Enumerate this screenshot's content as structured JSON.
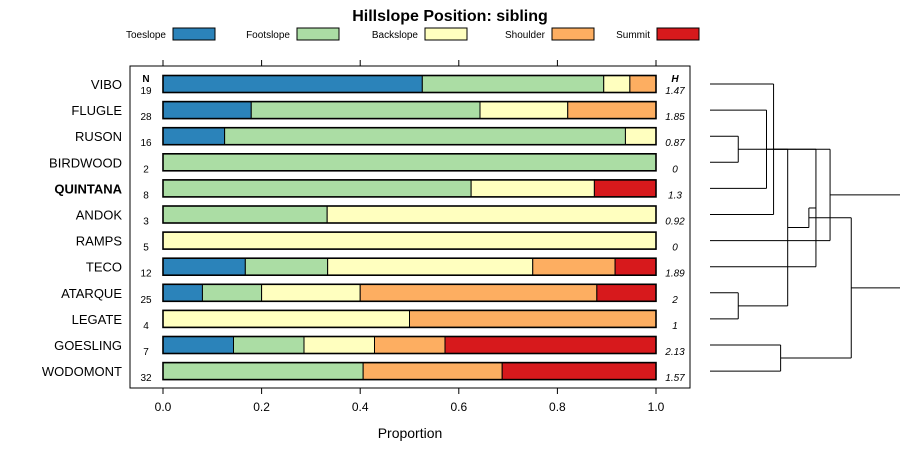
{
  "chart_data": {
    "type": "bar",
    "orientation": "horizontal",
    "stacked": true,
    "title": "Hillslope Position: sibling",
    "xlabel": "Proportion",
    "ylabel": "",
    "xlim": [
      0,
      1
    ],
    "xticks": [
      "0.0",
      "0.2",
      "0.4",
      "0.6",
      "0.8",
      "1.0"
    ],
    "legend_position": "top",
    "n_header": "N",
    "h_header": "H",
    "highlight_category": "QUINTANA",
    "series_names": [
      "Toeslope",
      "Footslope",
      "Backslope",
      "Shoulder",
      "Summit"
    ],
    "colors": [
      "#2B83BA",
      "#ABDDA4",
      "#FFFFBF",
      "#FDAE61",
      "#D7191C"
    ],
    "categories": [
      "VIBO",
      "FLUGLE",
      "RUSON",
      "BIRDWOOD",
      "QUINTANA",
      "ANDOK",
      "RAMPS",
      "TECO",
      "ATARQUE",
      "LEGATE",
      "GOESLING",
      "WODOMONT"
    ],
    "n": [
      "19",
      "28",
      "16",
      "2",
      "8",
      "3",
      "5",
      "12",
      "25",
      "4",
      "7",
      "32"
    ],
    "h": [
      "1.47",
      "1.85",
      "0.87",
      "0",
      "1.3",
      "0.92",
      "0",
      "1.89",
      "2",
      "1",
      "2.13",
      "1.57"
    ],
    "proportions": [
      [
        0.526,
        0.368,
        0.053,
        0.053,
        0.0
      ],
      [
        0.179,
        0.464,
        0.178,
        0.179,
        0.0
      ],
      [
        0.125,
        0.813,
        0.062,
        0.0,
        0.0
      ],
      [
        0.0,
        1.0,
        0.0,
        0.0,
        0.0
      ],
      [
        0.0,
        0.625,
        0.25,
        0.0,
        0.125
      ],
      [
        0.0,
        0.333,
        0.667,
        0.0,
        0.0
      ],
      [
        0.0,
        0.0,
        1.0,
        0.0,
        0.0
      ],
      [
        0.167,
        0.167,
        0.416,
        0.167,
        0.083
      ],
      [
        0.08,
        0.12,
        0.2,
        0.48,
        0.12
      ],
      [
        0.0,
        0.0,
        0.5,
        0.5,
        0.0
      ],
      [
        0.143,
        0.143,
        0.143,
        0.143,
        0.428
      ],
      [
        0.0,
        0.406,
        0.0,
        0.282,
        0.312
      ]
    ],
    "dendrogram_merges": [
      [
        -3,
        -4
      ],
      [
        -9,
        -10
      ],
      [
        -2,
        -5
      ],
      [
        -1,
        -6
      ],
      [
        -11,
        -12
      ],
      [
        2,
        1
      ],
      [
        4,
        -8
      ],
      [
        -7,
        3
      ],
      [
        6,
        7
      ],
      [
        5,
        9
      ],
      [
        8,
        10
      ]
    ],
    "dendrogram_heights": [
      0.2,
      0.2,
      0.4,
      0.45,
      0.5,
      0.55,
      0.75,
      0.85,
      0.7,
      1.0,
      1.6
    ]
  }
}
